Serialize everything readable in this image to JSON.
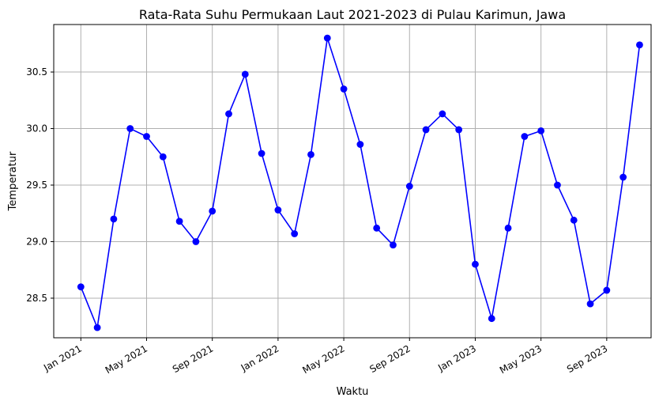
{
  "chart_data": {
    "type": "line",
    "title": "Rata-Rata Suhu Permukaan Laut 2021-2023 di Pulau Karimun, Jawa",
    "xlabel": "Waktu",
    "ylabel": "Temperatur",
    "grid": true,
    "color": "#0000ff",
    "xlim": [
      "2020-11",
      "2023-12"
    ],
    "ylim": [
      28.15,
      30.92
    ],
    "x_ticks": [
      "Jan 2021",
      "May 2021",
      "Sep 2021",
      "Jan 2022",
      "May 2022",
      "Sep 2022",
      "Jan 2023",
      "May 2023",
      "Sep 2023"
    ],
    "y_ticks": [
      "28.5",
      "29.0",
      "29.5",
      "30.0",
      "30.5"
    ],
    "series": [
      {
        "x": [
          "2021-01",
          "2021-02",
          "2021-03",
          "2021-04",
          "2021-05",
          "2021-06",
          "2021-07",
          "2021-08",
          "2021-09",
          "2021-10",
          "2021-11",
          "2021-12",
          "2022-01",
          "2022-02",
          "2022-03",
          "2022-04",
          "2022-05",
          "2022-06",
          "2022-07",
          "2022-08",
          "2022-09",
          "2022-10",
          "2022-11",
          "2022-12",
          "2023-01",
          "2023-02",
          "2023-03",
          "2023-04",
          "2023-05",
          "2023-06",
          "2023-07",
          "2023-08",
          "2023-09",
          "2023-10",
          "2023-11"
        ],
        "values": [
          28.6,
          28.24,
          29.2,
          30.0,
          29.93,
          29.75,
          29.18,
          29.0,
          29.27,
          30.13,
          30.48,
          29.78,
          29.28,
          29.07,
          29.77,
          30.8,
          30.35,
          29.86,
          29.12,
          28.97,
          29.49,
          29.99,
          30.13,
          29.99,
          28.8,
          28.32,
          29.12,
          29.93,
          29.98,
          29.5,
          29.19,
          28.45,
          28.57,
          29.57,
          30.74
        ]
      }
    ]
  }
}
